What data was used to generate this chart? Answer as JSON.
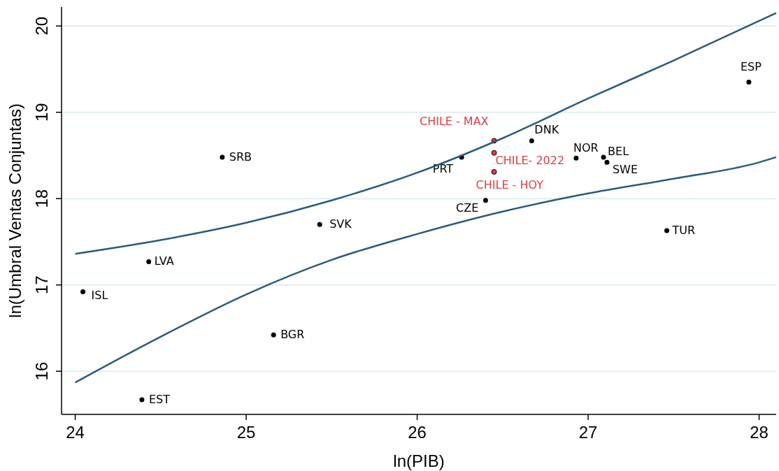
{
  "chart_data": {
    "type": "scatter",
    "xlabel": "ln(PIB)",
    "ylabel": "ln(Umbral Ventas Conjuntas)",
    "xlim": [
      23.92,
      28.1
    ],
    "ylim": [
      15.5,
      20.22
    ],
    "xticks": [
      24,
      25,
      26,
      27,
      28
    ],
    "yticks": [
      16,
      17,
      18,
      19,
      20
    ],
    "grid": "y",
    "series": [
      {
        "marker": "circle",
        "color": "#000000",
        "x": [
          24.045,
          24.43,
          24.39,
          24.86,
          25.16,
          25.43,
          26.26,
          26.4,
          26.67,
          26.93,
          27.09,
          27.11,
          27.46,
          27.94
        ],
        "values": [
          16.92,
          17.27,
          15.67,
          18.48,
          16.42,
          17.7,
          18.48,
          17.98,
          18.67,
          18.47,
          18.48,
          18.42,
          17.63,
          19.35
        ],
        "value_labels": [
          "ISL",
          "LVA",
          "EST",
          "SRB",
          "BGR",
          "SVK",
          "PRT",
          "CZE",
          "DNK",
          "NOR",
          "BEL",
          "SWE",
          "TUR",
          "ESP"
        ]
      },
      {
        "marker": "circle",
        "color": "#e8393f",
        "x": [
          26.45,
          26.45,
          26.45
        ],
        "values": [
          18.67,
          18.53,
          18.31
        ],
        "value_labels": [
          "CHILE - MAX",
          "CHILE- 2022",
          "CHILE - HOY"
        ]
      },
      {
        "type": "line",
        "color": "#2a5b7e",
        "x": [
          24,
          24.5,
          25,
          25.5,
          26,
          26.5,
          27,
          27.5,
          28,
          28.1
        ],
        "values": [
          17.36,
          17.52,
          17.72,
          17.98,
          18.3,
          18.7,
          19.16,
          19.6,
          20.06,
          20.15
        ]
      },
      {
        "type": "line",
        "color": "#2a5b7e",
        "x": [
          24,
          24.5,
          25,
          25.5,
          26,
          26.5,
          27,
          27.5,
          28,
          28.1
        ],
        "values": [
          15.87,
          16.4,
          16.89,
          17.29,
          17.59,
          17.85,
          18.06,
          18.23,
          18.42,
          18.48
        ]
      }
    ]
  }
}
